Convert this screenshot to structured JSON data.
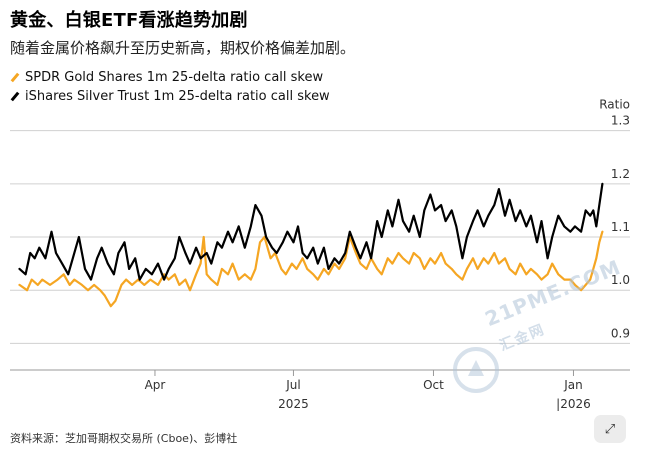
{
  "header": {
    "title": "黄金、白银ETF看涨趋势加剧",
    "subtitle": "随着金属价格飙升至历史新高，期权价格偏差加剧。"
  },
  "footer": {
    "source": "资料来源：芝加哥期权交易所 (Cboe)、彭博社"
  },
  "watermark": {
    "brand": "21PME.COM",
    "sub": "汇金网"
  },
  "fab": {
    "icon": "expand-arrows-icon",
    "glyph": "⤢"
  },
  "colors": {
    "gold": "#F5A623",
    "silver": "#000000",
    "grid": "#d0d0d0",
    "text": "#333333"
  },
  "chart_data": {
    "type": "line",
    "y_axis_title": "Ratio",
    "ylim": [
      0.85,
      1.32
    ],
    "yticks": [
      0.9,
      1.0,
      1.1,
      1.2,
      1.3
    ],
    "ytick_labels": [
      "0.9",
      "1.0",
      "1.1",
      "1.2",
      "1.3"
    ],
    "xlim": [
      "2025-01-01",
      "2026-01-25"
    ],
    "xticks": [
      "2025-04-01",
      "2025-07-01",
      "2025-10-01",
      "2026-01-01"
    ],
    "xtick_labels": [
      "Apr",
      "Jul",
      "Oct",
      "Jan"
    ],
    "year_labels": [
      {
        "date": "2025-07-01",
        "text": "2025"
      },
      {
        "date": "2026-01-01",
        "text": "|2026"
      }
    ],
    "grid": true,
    "legend_position": "top-left",
    "series": [
      {
        "name": "SPDR Gold Shares 1m 25-delta ratio call skew",
        "color": "#F5A623",
        "points": [
          [
            "2025-01-02",
            1.01
          ],
          [
            "2025-01-07",
            1.0
          ],
          [
            "2025-01-10",
            1.02
          ],
          [
            "2025-01-14",
            1.01
          ],
          [
            "2025-01-17",
            1.02
          ],
          [
            "2025-01-22",
            1.01
          ],
          [
            "2025-01-27",
            1.02
          ],
          [
            "2025-01-31",
            1.03
          ],
          [
            "2025-02-04",
            1.01
          ],
          [
            "2025-02-07",
            1.02
          ],
          [
            "2025-02-12",
            1.01
          ],
          [
            "2025-02-16",
            1.0
          ],
          [
            "2025-02-20",
            1.01
          ],
          [
            "2025-02-24",
            1.0
          ],
          [
            "2025-02-27",
            0.99
          ],
          [
            "2025-03-03",
            0.97
          ],
          [
            "2025-03-06",
            0.98
          ],
          [
            "2025-03-10",
            1.01
          ],
          [
            "2025-03-13",
            1.02
          ],
          [
            "2025-03-17",
            1.01
          ],
          [
            "2025-03-21",
            1.02
          ],
          [
            "2025-03-25",
            1.01
          ],
          [
            "2025-03-29",
            1.02
          ],
          [
            "2025-04-03",
            1.01
          ],
          [
            "2025-04-07",
            1.03
          ],
          [
            "2025-04-10",
            1.02
          ],
          [
            "2025-04-14",
            1.03
          ],
          [
            "2025-04-17",
            1.01
          ],
          [
            "2025-04-21",
            1.02
          ],
          [
            "2025-04-24",
            1.0
          ],
          [
            "2025-04-28",
            1.03
          ],
          [
            "2025-05-01",
            1.05
          ],
          [
            "2025-05-03",
            1.1
          ],
          [
            "2025-05-05",
            1.03
          ],
          [
            "2025-05-08",
            1.02
          ],
          [
            "2025-05-12",
            1.01
          ],
          [
            "2025-05-15",
            1.04
          ],
          [
            "2025-05-19",
            1.03
          ],
          [
            "2025-05-22",
            1.05
          ],
          [
            "2025-05-26",
            1.02
          ],
          [
            "2025-05-30",
            1.03
          ],
          [
            "2025-06-03",
            1.02
          ],
          [
            "2025-06-06",
            1.04
          ],
          [
            "2025-06-09",
            1.09
          ],
          [
            "2025-06-12",
            1.1
          ],
          [
            "2025-06-16",
            1.06
          ],
          [
            "2025-06-19",
            1.07
          ],
          [
            "2025-06-23",
            1.04
          ],
          [
            "2025-06-26",
            1.03
          ],
          [
            "2025-06-30",
            1.05
          ],
          [
            "2025-07-03",
            1.04
          ],
          [
            "2025-07-07",
            1.06
          ],
          [
            "2025-07-10",
            1.04
          ],
          [
            "2025-07-14",
            1.03
          ],
          [
            "2025-07-17",
            1.02
          ],
          [
            "2025-07-21",
            1.04
          ],
          [
            "2025-07-24",
            1.03
          ],
          [
            "2025-07-28",
            1.05
          ],
          [
            "2025-07-31",
            1.04
          ],
          [
            "2025-08-04",
            1.06
          ],
          [
            "2025-08-07",
            1.1
          ],
          [
            "2025-08-11",
            1.07
          ],
          [
            "2025-08-14",
            1.05
          ],
          [
            "2025-08-18",
            1.04
          ],
          [
            "2025-08-21",
            1.06
          ],
          [
            "2025-08-25",
            1.04
          ],
          [
            "2025-08-28",
            1.03
          ],
          [
            "2025-09-01",
            1.06
          ],
          [
            "2025-09-04",
            1.05
          ],
          [
            "2025-09-08",
            1.07
          ],
          [
            "2025-09-11",
            1.06
          ],
          [
            "2025-09-15",
            1.05
          ],
          [
            "2025-09-18",
            1.07
          ],
          [
            "2025-09-22",
            1.06
          ],
          [
            "2025-09-25",
            1.04
          ],
          [
            "2025-09-29",
            1.06
          ],
          [
            "2025-10-02",
            1.05
          ],
          [
            "2025-10-06",
            1.07
          ],
          [
            "2025-10-09",
            1.05
          ],
          [
            "2025-10-13",
            1.04
          ],
          [
            "2025-10-16",
            1.03
          ],
          [
            "2025-10-20",
            1.02
          ],
          [
            "2025-10-23",
            1.04
          ],
          [
            "2025-10-27",
            1.06
          ],
          [
            "2025-10-30",
            1.04
          ],
          [
            "2025-11-03",
            1.06
          ],
          [
            "2025-11-06",
            1.05
          ],
          [
            "2025-11-10",
            1.07
          ],
          [
            "2025-11-13",
            1.05
          ],
          [
            "2025-11-17",
            1.06
          ],
          [
            "2025-11-20",
            1.04
          ],
          [
            "2025-11-24",
            1.03
          ],
          [
            "2025-11-27",
            1.05
          ],
          [
            "2025-12-01",
            1.03
          ],
          [
            "2025-12-04",
            1.04
          ],
          [
            "2025-12-08",
            1.03
          ],
          [
            "2025-12-11",
            1.02
          ],
          [
            "2025-12-15",
            1.03
          ],
          [
            "2025-12-18",
            1.05
          ],
          [
            "2025-12-22",
            1.03
          ],
          [
            "2025-12-26",
            1.02
          ],
          [
            "2025-12-30",
            1.02
          ],
          [
            "2026-01-02",
            1.01
          ],
          [
            "2026-01-06",
            1.0
          ],
          [
            "2026-01-09",
            1.01
          ],
          [
            "2026-01-12",
            1.02
          ],
          [
            "2026-01-14",
            1.04
          ],
          [
            "2026-01-16",
            1.06
          ],
          [
            "2026-01-18",
            1.09
          ],
          [
            "2026-01-20",
            1.11
          ]
        ]
      },
      {
        "name": "iShares Silver Trust 1m 25-delta ratio call skew",
        "color": "#000000",
        "points": [
          [
            "2025-01-02",
            1.04
          ],
          [
            "2025-01-06",
            1.03
          ],
          [
            "2025-01-09",
            1.07
          ],
          [
            "2025-01-12",
            1.06
          ],
          [
            "2025-01-15",
            1.08
          ],
          [
            "2025-01-19",
            1.06
          ],
          [
            "2025-01-23",
            1.11
          ],
          [
            "2025-01-26",
            1.07
          ],
          [
            "2025-01-30",
            1.05
          ],
          [
            "2025-02-03",
            1.03
          ],
          [
            "2025-02-06",
            1.06
          ],
          [
            "2025-02-10",
            1.1
          ],
          [
            "2025-02-14",
            1.04
          ],
          [
            "2025-02-18",
            1.02
          ],
          [
            "2025-02-22",
            1.06
          ],
          [
            "2025-02-25",
            1.08
          ],
          [
            "2025-03-01",
            1.05
          ],
          [
            "2025-03-05",
            1.03
          ],
          [
            "2025-03-08",
            1.07
          ],
          [
            "2025-03-12",
            1.09
          ],
          [
            "2025-03-15",
            1.04
          ],
          [
            "2025-03-19",
            1.06
          ],
          [
            "2025-03-22",
            1.02
          ],
          [
            "2025-03-26",
            1.04
          ],
          [
            "2025-03-30",
            1.03
          ],
          [
            "2025-04-03",
            1.05
          ],
          [
            "2025-04-07",
            1.02
          ],
          [
            "2025-04-10",
            1.04
          ],
          [
            "2025-04-14",
            1.06
          ],
          [
            "2025-04-17",
            1.1
          ],
          [
            "2025-04-21",
            1.07
          ],
          [
            "2025-04-24",
            1.05
          ],
          [
            "2025-04-28",
            1.08
          ],
          [
            "2025-05-01",
            1.06
          ],
          [
            "2025-05-05",
            1.07
          ],
          [
            "2025-05-08",
            1.05
          ],
          [
            "2025-05-12",
            1.09
          ],
          [
            "2025-05-15",
            1.08
          ],
          [
            "2025-05-19",
            1.11
          ],
          [
            "2025-05-22",
            1.09
          ],
          [
            "2025-05-26",
            1.12
          ],
          [
            "2025-05-30",
            1.08
          ],
          [
            "2025-06-03",
            1.12
          ],
          [
            "2025-06-06",
            1.16
          ],
          [
            "2025-06-10",
            1.14
          ],
          [
            "2025-06-13",
            1.1
          ],
          [
            "2025-06-17",
            1.08
          ],
          [
            "2025-06-20",
            1.07
          ],
          [
            "2025-06-24",
            1.09
          ],
          [
            "2025-06-27",
            1.11
          ],
          [
            "2025-07-01",
            1.09
          ],
          [
            "2025-07-04",
            1.12
          ],
          [
            "2025-07-07",
            1.07
          ],
          [
            "2025-07-10",
            1.06
          ],
          [
            "2025-07-14",
            1.08
          ],
          [
            "2025-07-17",
            1.05
          ],
          [
            "2025-07-21",
            1.08
          ],
          [
            "2025-07-24",
            1.04
          ],
          [
            "2025-07-28",
            1.06
          ],
          [
            "2025-07-31",
            1.05
          ],
          [
            "2025-08-04",
            1.07
          ],
          [
            "2025-08-07",
            1.11
          ],
          [
            "2025-08-11",
            1.08
          ],
          [
            "2025-08-14",
            1.06
          ],
          [
            "2025-08-18",
            1.09
          ],
          [
            "2025-08-21",
            1.06
          ],
          [
            "2025-08-25",
            1.13
          ],
          [
            "2025-08-28",
            1.1
          ],
          [
            "2025-09-01",
            1.15
          ],
          [
            "2025-09-04",
            1.12
          ],
          [
            "2025-09-08",
            1.17
          ],
          [
            "2025-09-11",
            1.13
          ],
          [
            "2025-09-15",
            1.11
          ],
          [
            "2025-09-18",
            1.14
          ],
          [
            "2025-09-22",
            1.1
          ],
          [
            "2025-09-25",
            1.15
          ],
          [
            "2025-09-29",
            1.18
          ],
          [
            "2025-10-02",
            1.15
          ],
          [
            "2025-10-06",
            1.16
          ],
          [
            "2025-10-09",
            1.13
          ],
          [
            "2025-10-13",
            1.15
          ],
          [
            "2025-10-16",
            1.12
          ],
          [
            "2025-10-20",
            1.06
          ],
          [
            "2025-10-23",
            1.1
          ],
          [
            "2025-10-27",
            1.13
          ],
          [
            "2025-10-30",
            1.15
          ],
          [
            "2025-11-03",
            1.12
          ],
          [
            "2025-11-06",
            1.14
          ],
          [
            "2025-11-10",
            1.16
          ],
          [
            "2025-11-13",
            1.19
          ],
          [
            "2025-11-17",
            1.14
          ],
          [
            "2025-11-20",
            1.17
          ],
          [
            "2025-11-24",
            1.13
          ],
          [
            "2025-11-27",
            1.15
          ],
          [
            "2025-12-01",
            1.12
          ],
          [
            "2025-12-04",
            1.14
          ],
          [
            "2025-12-08",
            1.09
          ],
          [
            "2025-12-11",
            1.13
          ],
          [
            "2025-12-15",
            1.06
          ],
          [
            "2025-12-18",
            1.1
          ],
          [
            "2025-12-22",
            1.14
          ],
          [
            "2025-12-26",
            1.12
          ],
          [
            "2025-12-30",
            1.11
          ],
          [
            "2026-01-02",
            1.12
          ],
          [
            "2026-01-06",
            1.11
          ],
          [
            "2026-01-09",
            1.15
          ],
          [
            "2026-01-12",
            1.14
          ],
          [
            "2026-01-14",
            1.15
          ],
          [
            "2026-01-16",
            1.12
          ],
          [
            "2026-01-18",
            1.16
          ],
          [
            "2026-01-20",
            1.2
          ]
        ]
      }
    ]
  }
}
